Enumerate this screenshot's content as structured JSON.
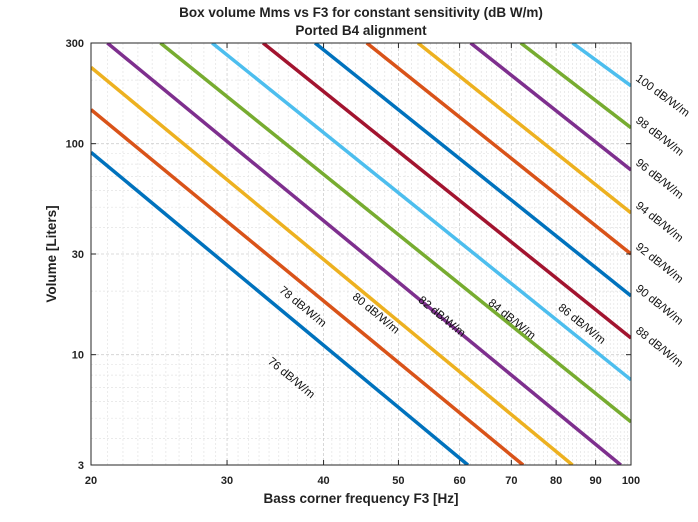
{
  "chart_data": {
    "type": "line",
    "title": "Box volume Mms vs F3 for constant sensitivity (dB W/m)",
    "subtitle": "Ported B4 alignment",
    "xlabel": "Bass corner frequency F3 [Hz]",
    "ylabel": "Volume [Liters]",
    "xscale": "log",
    "yscale": "log",
    "xlim": [
      20,
      100
    ],
    "ylim": [
      3,
      300
    ],
    "grid": true,
    "x_ticks": [
      {
        "value": 20,
        "label": "20"
      },
      {
        "value": 30,
        "label": "30"
      },
      {
        "value": 40,
        "label": "40"
      },
      {
        "value": 50,
        "label": "50"
      },
      {
        "value": 60,
        "label": "60"
      },
      {
        "value": 70,
        "label": "70"
      },
      {
        "value": 80,
        "label": "80"
      },
      {
        "value": 90,
        "label": "90"
      },
      {
        "value": 100,
        "label": "100"
      }
    ],
    "y_ticks": [
      {
        "value": 3,
        "label": "3"
      },
      {
        "value": 10,
        "label": "10"
      },
      {
        "value": 30,
        "label": "30"
      },
      {
        "value": 100,
        "label": "100"
      },
      {
        "value": 300,
        "label": "300"
      }
    ],
    "series": [
      {
        "name": "76 dB/W/m",
        "color": "#0072BD",
        "x": [
          20,
          61.5
        ],
        "y": [
          91,
          3
        ],
        "label_at": {
          "x": 37,
          "y": 8.4
        },
        "label_side": "below"
      },
      {
        "name": "78 dB/W/m",
        "color": "#D95319",
        "x": [
          20,
          72.5
        ],
        "y": [
          145,
          3
        ],
        "label_at": {
          "x": 37,
          "y": 15.7
        },
        "label_side": "above"
      },
      {
        "name": "80 dB/W/m",
        "color": "#EDB120",
        "x": [
          20,
          84
        ],
        "y": [
          230,
          3
        ],
        "label_at": {
          "x": 46,
          "y": 14.6
        },
        "label_side": "above"
      },
      {
        "name": "82 dB/W/m",
        "color": "#7E2F8E",
        "x": [
          21,
          97
        ],
        "y": [
          300,
          3
        ],
        "label_at": {
          "x": 56,
          "y": 14.1
        },
        "label_side": "above"
      },
      {
        "name": "84 dB/W/m",
        "color": "#77AC30",
        "x": [
          24.6,
          100
        ],
        "y": [
          300,
          4.8
        ],
        "label_at": {
          "x": 69,
          "y": 13.7
        },
        "label_side": "above"
      },
      {
        "name": "86 dB/W/m",
        "color": "#4DBEEE",
        "x": [
          28.7,
          100
        ],
        "y": [
          300,
          7.6
        ],
        "label_at": {
          "x": 85,
          "y": 13.0
        },
        "label_side": "above"
      },
      {
        "name": "88 dB/W/m",
        "color": "#A2142F",
        "x": [
          33.4,
          100
        ],
        "y": [
          300,
          12
        ],
        "label_at": {
          "x": 100,
          "y": 12
        },
        "label_side": "right"
      },
      {
        "name": "90 dB/W/m",
        "color": "#0072BD",
        "x": [
          39,
          100
        ],
        "y": [
          300,
          19
        ],
        "label_at": {
          "x": 100,
          "y": 19
        },
        "label_side": "right"
      },
      {
        "name": "92 dB/W/m",
        "color": "#D95319",
        "x": [
          45.5,
          100
        ],
        "y": [
          300,
          30
        ],
        "label_at": {
          "x": 100,
          "y": 30
        },
        "label_side": "right"
      },
      {
        "name": "94 dB/W/m",
        "color": "#EDB120",
        "x": [
          53,
          100
        ],
        "y": [
          300,
          47
        ],
        "label_at": {
          "x": 100,
          "y": 47
        },
        "label_side": "right"
      },
      {
        "name": "96 dB/W/m",
        "color": "#7E2F8E",
        "x": [
          62,
          100
        ],
        "y": [
          300,
          75
        ],
        "label_at": {
          "x": 100,
          "y": 75
        },
        "label_side": "right"
      },
      {
        "name": "98 dB/W/m",
        "color": "#77AC30",
        "x": [
          72,
          100
        ],
        "y": [
          300,
          119
        ],
        "label_at": {
          "x": 100,
          "y": 119
        },
        "label_side": "right"
      },
      {
        "name": "100 dB/W/m",
        "color": "#4DBEEE",
        "x": [
          84,
          100
        ],
        "y": [
          300,
          188
        ],
        "label_at": {
          "x": 100,
          "y": 188
        },
        "label_side": "right"
      }
    ]
  }
}
